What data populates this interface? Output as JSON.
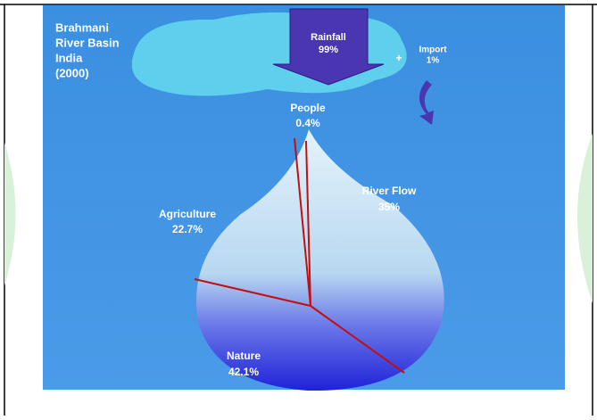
{
  "title": [
    "Brahmani",
    "River Basin",
    "India",
    "(2000)"
  ],
  "inflows": [
    {
      "label": "Rainfall",
      "share": "99%"
    },
    {
      "label": "Import",
      "share": "1%"
    }
  ],
  "plus": "+",
  "outflows": [
    {
      "label": "People",
      "share": "0.4%"
    },
    {
      "label": "River Flow",
      "share": "35%"
    },
    {
      "label": "Agriculture",
      "share": "22.7%"
    },
    {
      "label": "Nature",
      "share": "42.1%"
    }
  ]
}
